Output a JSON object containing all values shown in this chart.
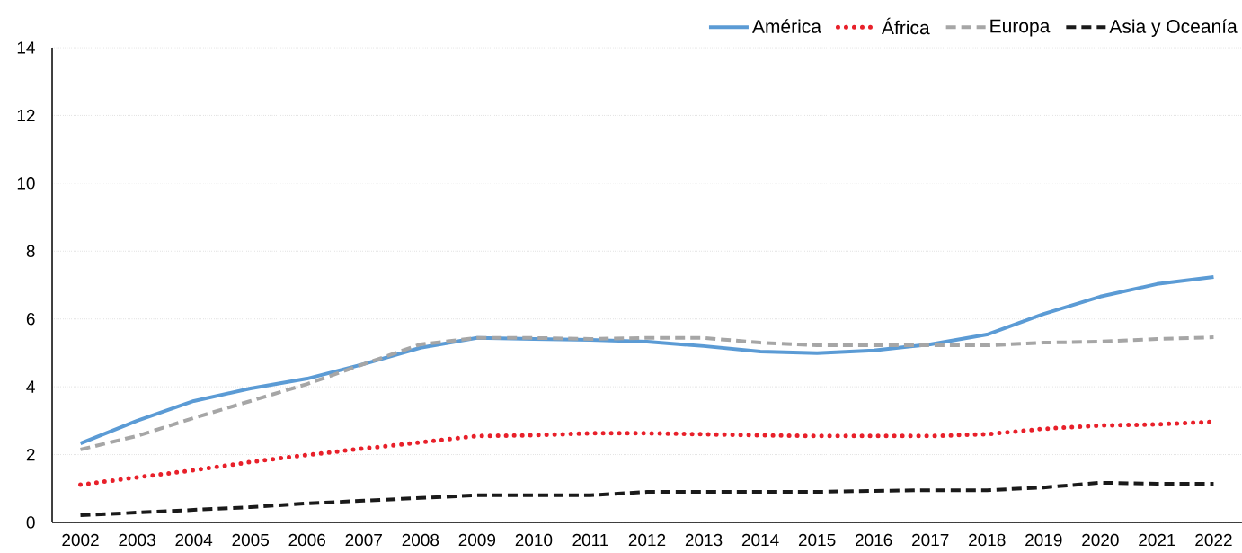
{
  "chart_data": {
    "type": "line",
    "categories": [
      "2002",
      "2003",
      "2004",
      "2005",
      "2006",
      "2007",
      "2008",
      "2009",
      "2010",
      "2011",
      "2012",
      "2013",
      "2014",
      "2015",
      "2016",
      "2017",
      "2018",
      "2019",
      "2020",
      "2021",
      "2022"
    ],
    "series": [
      {
        "name": "América",
        "color": "#5b9bd5",
        "line_style": "solid",
        "values": [
          2.33,
          3.0,
          3.58,
          3.95,
          4.24,
          4.67,
          5.15,
          5.44,
          5.41,
          5.38,
          5.33,
          5.2,
          5.04,
          4.99,
          5.07,
          5.25,
          5.54,
          6.15,
          6.66,
          7.03,
          7.24
        ]
      },
      {
        "name": "África",
        "color": "#e8202a",
        "line_style": "dotted",
        "values": [
          1.11,
          1.33,
          1.54,
          1.78,
          1.99,
          2.18,
          2.36,
          2.55,
          2.57,
          2.63,
          2.63,
          2.6,
          2.57,
          2.55,
          2.55,
          2.55,
          2.6,
          2.76,
          2.86,
          2.89,
          2.97
        ]
      },
      {
        "name": "Europa",
        "color": "#a6a6a6",
        "line_style": "dashed",
        "values": [
          2.15,
          2.55,
          3.08,
          3.58,
          4.08,
          4.67,
          5.25,
          5.44,
          5.44,
          5.41,
          5.44,
          5.44,
          5.3,
          5.22,
          5.22,
          5.22,
          5.22,
          5.3,
          5.33,
          5.41,
          5.46
        ]
      },
      {
        "name": "Asia y Oceanía",
        "color": "#1a1a1a",
        "line_style": "dashed",
        "values": [
          0.21,
          0.29,
          0.37,
          0.45,
          0.56,
          0.64,
          0.72,
          0.8,
          0.8,
          0.8,
          0.9,
          0.9,
          0.9,
          0.9,
          0.93,
          0.95,
          0.95,
          1.03,
          1.17,
          1.14,
          1.14
        ]
      }
    ],
    "ylim": [
      0,
      14
    ],
    "yticks": [
      0,
      2,
      4,
      6,
      8,
      10,
      12,
      14
    ],
    "grid": "y",
    "legend": "top right",
    "marker": "none"
  }
}
